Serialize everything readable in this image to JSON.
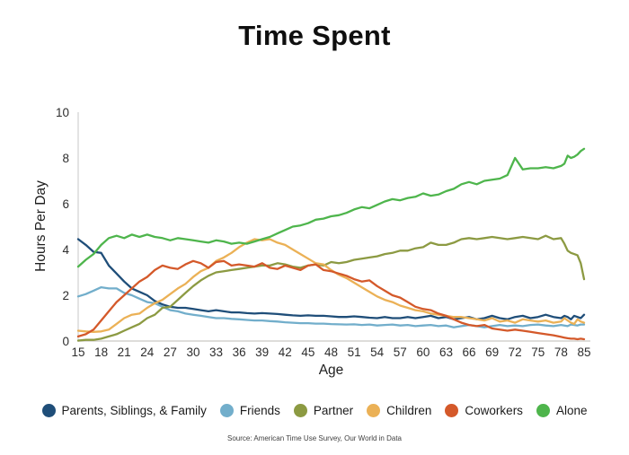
{
  "source": "Source: American Time Use Survey, Our World in Data",
  "chart_data": {
    "type": "line",
    "title": "Time Spent",
    "xlabel": "Age",
    "ylabel": "Hours Per Day",
    "ylim": [
      0,
      10
    ],
    "yticks": [
      0,
      2,
      4,
      6,
      8,
      10
    ],
    "xtick_labels": [
      "15",
      "18",
      "21",
      "24",
      "27",
      "30",
      "33",
      "36",
      "39",
      "42",
      "45",
      "48",
      "51",
      "54",
      "57",
      "60",
      "63",
      "66",
      "69",
      "72",
      "75",
      "78",
      "85"
    ],
    "grid": false,
    "legend_position": "bottom",
    "ages": [
      15,
      16,
      17,
      18,
      19,
      20,
      21,
      22,
      23,
      24,
      25,
      26,
      27,
      28,
      29,
      30,
      31,
      32,
      33,
      34,
      35,
      36,
      37,
      38,
      39,
      40,
      41,
      42,
      43,
      44,
      45,
      46,
      47,
      48,
      49,
      50,
      51,
      52,
      53,
      54,
      55,
      56,
      57,
      58,
      59,
      60,
      61,
      62,
      63,
      64,
      65,
      66,
      67,
      68,
      69,
      70,
      71,
      72,
      73,
      74,
      75,
      76,
      77,
      78,
      79,
      80,
      81,
      82,
      83,
      84,
      85
    ],
    "series": [
      {
        "name": "Parents, Siblings, & Family",
        "color": "#1f4e79",
        "values": [
          4.45,
          4.2,
          3.9,
          3.85,
          3.3,
          2.95,
          2.6,
          2.3,
          2.15,
          2.0,
          1.75,
          1.6,
          1.5,
          1.45,
          1.45,
          1.4,
          1.35,
          1.3,
          1.35,
          1.3,
          1.25,
          1.25,
          1.22,
          1.2,
          1.22,
          1.2,
          1.18,
          1.15,
          1.12,
          1.1,
          1.12,
          1.1,
          1.1,
          1.08,
          1.05,
          1.05,
          1.08,
          1.05,
          1.02,
          1.0,
          1.05,
          1.0,
          1.0,
          1.05,
          1.0,
          1.05,
          1.1,
          1.0,
          1.05,
          0.95,
          1.0,
          1.05,
          0.95,
          1.0,
          1.1,
          1.0,
          0.95,
          1.05,
          1.1,
          1.0,
          1.05,
          1.15,
          1.05,
          1.0,
          1.1,
          1.05,
          0.95,
          1.1,
          1.05,
          1.0,
          1.15
        ]
      },
      {
        "name": "Friends",
        "color": "#72aecb",
        "values": [
          1.95,
          2.05,
          2.2,
          2.35,
          2.3,
          2.3,
          2.1,
          2.0,
          1.85,
          1.7,
          1.65,
          1.5,
          1.35,
          1.3,
          1.2,
          1.15,
          1.1,
          1.05,
          1.0,
          1.0,
          0.97,
          0.95,
          0.92,
          0.9,
          0.9,
          0.87,
          0.85,
          0.82,
          0.8,
          0.78,
          0.78,
          0.76,
          0.76,
          0.74,
          0.73,
          0.72,
          0.73,
          0.7,
          0.72,
          0.68,
          0.7,
          0.72,
          0.68,
          0.7,
          0.65,
          0.68,
          0.7,
          0.65,
          0.68,
          0.6,
          0.65,
          0.7,
          0.65,
          0.6,
          0.65,
          0.7,
          0.65,
          0.68,
          0.65,
          0.7,
          0.72,
          0.68,
          0.65,
          0.7,
          0.68,
          0.65,
          0.72,
          0.7,
          0.68,
          0.72,
          0.72
        ]
      },
      {
        "name": "Partner",
        "color": "#8c9a42",
        "values": [
          0.02,
          0.05,
          0.05,
          0.1,
          0.2,
          0.3,
          0.45,
          0.6,
          0.75,
          1.0,
          1.15,
          1.45,
          1.5,
          1.8,
          2.1,
          2.4,
          2.65,
          2.85,
          3.0,
          3.05,
          3.1,
          3.15,
          3.2,
          3.25,
          3.3,
          3.3,
          3.4,
          3.35,
          3.25,
          3.2,
          3.3,
          3.35,
          3.3,
          3.45,
          3.4,
          3.45,
          3.55,
          3.6,
          3.65,
          3.7,
          3.8,
          3.85,
          3.95,
          3.95,
          4.05,
          4.1,
          4.3,
          4.2,
          4.2,
          4.3,
          4.45,
          4.5,
          4.45,
          4.5,
          4.55,
          4.5,
          4.45,
          4.5,
          4.55,
          4.5,
          4.45,
          4.6,
          4.45,
          4.5,
          4.25,
          3.95,
          3.85,
          3.8,
          3.75,
          3.4,
          2.7
        ]
      },
      {
        "name": "Children",
        "color": "#ebb156",
        "values": [
          0.45,
          0.42,
          0.4,
          0.42,
          0.5,
          0.75,
          1.0,
          1.15,
          1.2,
          1.45,
          1.65,
          1.8,
          2.05,
          2.3,
          2.5,
          2.8,
          3.05,
          3.2,
          3.5,
          3.65,
          3.85,
          4.1,
          4.3,
          4.45,
          4.4,
          4.45,
          4.3,
          4.2,
          4.0,
          3.8,
          3.6,
          3.4,
          3.35,
          3.1,
          2.9,
          2.75,
          2.55,
          2.35,
          2.15,
          1.95,
          1.8,
          1.7,
          1.55,
          1.45,
          1.35,
          1.3,
          1.2,
          1.15,
          1.1,
          1.05,
          1.05,
          1.0,
          0.95,
          0.9,
          1.0,
          0.85,
          0.9,
          0.8,
          0.95,
          0.9,
          0.85,
          0.9,
          0.8,
          0.85,
          1.0,
          0.9,
          0.8,
          0.75,
          0.95,
          0.85,
          0.8
        ]
      },
      {
        "name": "Coworkers",
        "color": "#d4592a",
        "values": [
          0.2,
          0.3,
          0.5,
          0.9,
          1.3,
          1.7,
          2.0,
          2.3,
          2.6,
          2.8,
          3.1,
          3.3,
          3.2,
          3.15,
          3.35,
          3.5,
          3.4,
          3.2,
          3.45,
          3.5,
          3.3,
          3.35,
          3.3,
          3.25,
          3.4,
          3.2,
          3.15,
          3.3,
          3.2,
          3.1,
          3.3,
          3.35,
          3.1,
          3.05,
          2.95,
          2.85,
          2.7,
          2.6,
          2.65,
          2.4,
          2.2,
          2.0,
          1.9,
          1.7,
          1.5,
          1.4,
          1.35,
          1.2,
          1.1,
          0.95,
          0.8,
          0.7,
          0.65,
          0.7,
          0.55,
          0.5,
          0.45,
          0.5,
          0.45,
          0.4,
          0.35,
          0.3,
          0.25,
          0.18,
          0.15,
          0.12,
          0.1,
          0.1,
          0.08,
          0.1,
          0.08
        ]
      },
      {
        "name": "Alone",
        "color": "#4eb54c",
        "values": [
          3.25,
          3.55,
          3.8,
          4.2,
          4.5,
          4.6,
          4.5,
          4.65,
          4.55,
          4.65,
          4.55,
          4.5,
          4.4,
          4.5,
          4.45,
          4.4,
          4.35,
          4.3,
          4.4,
          4.35,
          4.25,
          4.3,
          4.25,
          4.35,
          4.45,
          4.55,
          4.7,
          4.85,
          5.0,
          5.05,
          5.15,
          5.3,
          5.35,
          5.45,
          5.5,
          5.6,
          5.75,
          5.85,
          5.8,
          5.95,
          6.1,
          6.2,
          6.15,
          6.25,
          6.3,
          6.45,
          6.35,
          6.4,
          6.55,
          6.65,
          6.85,
          6.95,
          6.85,
          7.0,
          7.05,
          7.1,
          7.25,
          8.0,
          7.5,
          7.55,
          7.55,
          7.6,
          7.55,
          7.65,
          7.75,
          8.1,
          8.0,
          8.05,
          8.15,
          8.3,
          8.4
        ]
      }
    ]
  }
}
